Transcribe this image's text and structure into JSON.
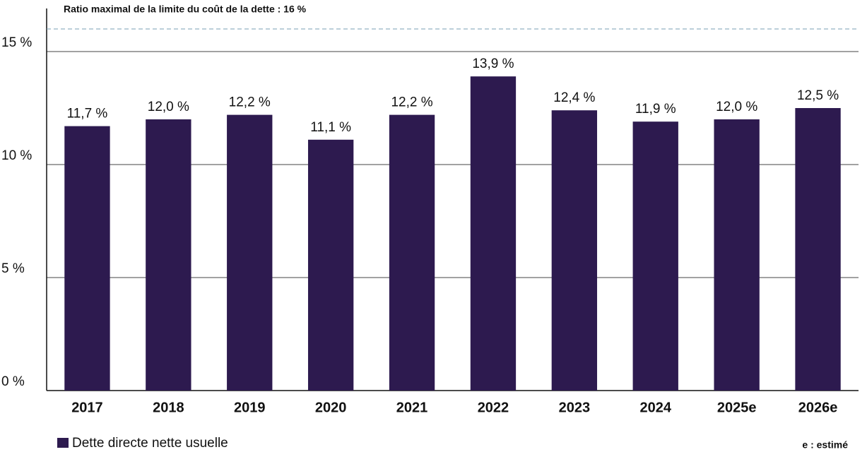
{
  "chart_data": {
    "type": "bar",
    "categories": [
      "2017",
      "2018",
      "2019",
      "2020",
      "2021",
      "2022",
      "2023",
      "2024",
      "2025e",
      "2026e"
    ],
    "series": [
      {
        "name": "Dette directe nette usuelle",
        "color": "#2d1a4f",
        "values": [
          11.7,
          12.0,
          12.2,
          11.1,
          12.2,
          13.9,
          12.4,
          11.9,
          12.0,
          12.5
        ],
        "value_labels": [
          "11,7 %",
          "12,0 %",
          "12,2 %",
          "11,1 %",
          "12,2 %",
          "13,9 %",
          "12,4 %",
          "11,9 %",
          "12,0 %",
          "12,5 %"
        ]
      }
    ],
    "ylim": [
      0,
      17
    ],
    "yticks": [
      {
        "value": 0,
        "label": "0 %"
      },
      {
        "value": 5,
        "label": "5 %"
      },
      {
        "value": 10,
        "label": "10 %"
      },
      {
        "value": 15,
        "label": "15 %"
      }
    ],
    "grid": true,
    "threshold": {
      "value": 16,
      "label": "Ratio maximal de la limite du coût de la dette : 16 %",
      "color": "#7a9fb5"
    },
    "note": "e : estimé"
  }
}
